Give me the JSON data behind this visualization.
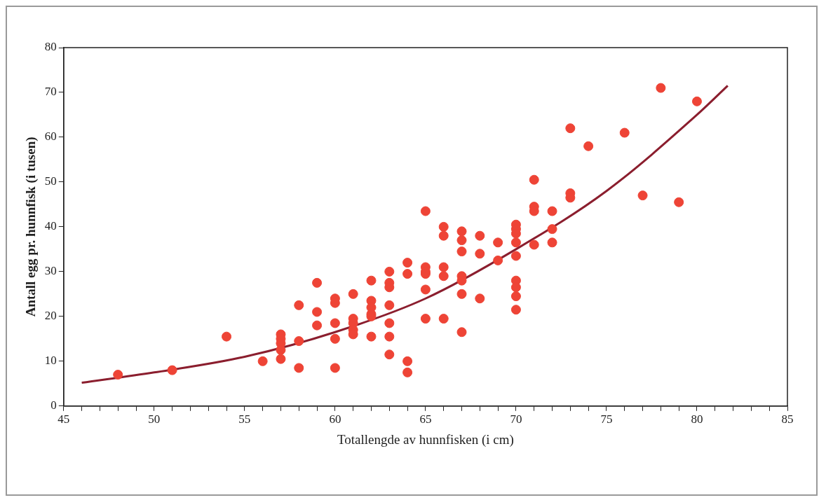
{
  "chart_data": {
    "type": "scatter",
    "xlabel": "Totallengde av hunnfisken (i cm)",
    "ylabel": "Antall egg pr. hunnfisk (i tusen)",
    "xlim": [
      45,
      85
    ],
    "ylim": [
      0,
      80
    ],
    "yticks": [
      0,
      10,
      20,
      30,
      40,
      50,
      60,
      70,
      80
    ],
    "xticks": [
      45,
      {
        "value": 46,
        "label": null
      },
      {
        "value": 47,
        "label": null
      },
      {
        "value": 48,
        "label": null
      },
      {
        "value": 49,
        "label": null
      },
      50,
      {
        "value": 51,
        "label": null
      },
      {
        "value": 52,
        "label": null
      },
      {
        "value": 53,
        "label": null
      },
      {
        "value": 54,
        "label": null
      },
      55,
      {
        "value": 56,
        "label": null
      },
      {
        "value": 57,
        "label": null
      },
      {
        "value": 58,
        "label": null
      },
      {
        "value": 59,
        "label": null
      },
      60,
      {
        "value": 61,
        "label": null
      },
      {
        "value": 62,
        "label": null
      },
      {
        "value": 63,
        "label": null
      },
      {
        "value": 64,
        "label": null
      },
      65,
      {
        "value": 66,
        "label": null
      },
      {
        "value": 67,
        "label": null
      },
      {
        "value": 68,
        "label": null
      },
      {
        "value": 69,
        "label": null
      },
      70,
      {
        "value": 71,
        "label": null
      },
      {
        "value": 72,
        "label": null
      },
      {
        "value": 73,
        "label": null
      },
      {
        "value": 74,
        "label": null
      },
      75,
      {
        "value": 76,
        "label": null
      },
      {
        "value": 77,
        "label": null
      },
      {
        "value": 78,
        "label": null
      },
      {
        "value": 79,
        "label": null
      },
      80,
      {
        "value": 81,
        "label": null
      },
      {
        "value": 82,
        "label": null
      },
      {
        "value": 83,
        "label": null
      },
      {
        "value": 84,
        "label": null
      },
      85
    ],
    "grid": false,
    "legend": false,
    "marker": "circle",
    "series": [
      {
        "type": "scatter",
        "color": "#ee4436",
        "x": [
          48,
          51,
          54,
          56,
          57,
          57,
          57,
          57,
          57,
          58,
          58,
          58,
          59,
          59,
          59,
          60,
          60,
          60,
          60,
          60,
          61,
          61,
          61,
          61,
          61,
          62,
          62,
          62,
          62,
          62,
          62,
          63,
          63,
          63,
          63,
          63,
          63,
          63,
          64,
          64,
          64,
          64,
          65,
          65,
          65,
          65,
          65,
          65,
          66,
          66,
          66,
          66,
          66,
          67,
          67,
          67,
          67,
          67,
          67,
          67,
          68,
          68,
          68,
          69,
          69,
          70,
          70,
          70,
          70,
          70,
          70,
          70,
          70,
          70,
          71,
          71,
          71,
          71,
          72,
          72,
          72,
          73,
          73,
          73,
          74,
          76,
          77,
          78,
          79,
          80
        ],
        "values": [
          7,
          8,
          15.5,
          10,
          16,
          15,
          14,
          12.5,
          10.5,
          22.5,
          14.5,
          8.5,
          27.5,
          21,
          18,
          24,
          23,
          18.5,
          15,
          8.5,
          25,
          19.5,
          18.5,
          17,
          16,
          28,
          23.5,
          22,
          20.5,
          20,
          15.5,
          30,
          27.5,
          26.5,
          22.5,
          18.5,
          15.5,
          11.5,
          32,
          29.5,
          10,
          7.5,
          43.5,
          31,
          30,
          29.5,
          26,
          19.5,
          40,
          38,
          31,
          29,
          19.5,
          39,
          37,
          34.5,
          29,
          28,
          25,
          16.5,
          38,
          34,
          24,
          36.5,
          32.5,
          40.5,
          39.5,
          38.5,
          36.5,
          33.5,
          28,
          26.5,
          24.5,
          21.5,
          50.5,
          44.5,
          43.5,
          36,
          43.5,
          39.5,
          36.5,
          62,
          47.5,
          46.5,
          58,
          61,
          47,
          71,
          45.5,
          68
        ]
      },
      {
        "type": "line",
        "color": "#8b1e2e",
        "marker": "none",
        "x": [
          46,
          50,
          55,
          60,
          65,
          70,
          75,
          80,
          81.7
        ],
        "values": [
          5.2,
          7.5,
          11,
          16.5,
          24,
          35,
          48,
          65,
          71.5
        ]
      }
    ]
  }
}
